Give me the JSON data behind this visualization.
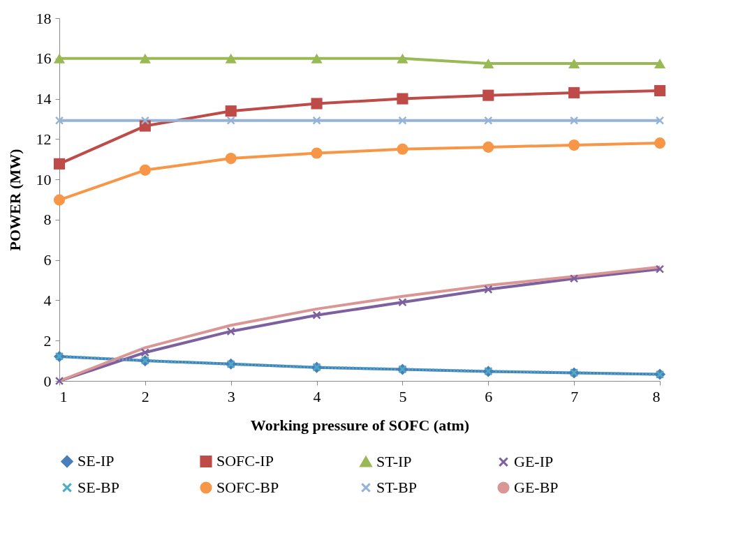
{
  "chart_data": {
    "type": "line",
    "xlabel": "Working pressure of SOFC (atm)",
    "ylabel": "POWER (MW)",
    "x": [
      1,
      2,
      3,
      4,
      5,
      6,
      7,
      8
    ],
    "xlim": [
      1,
      8
    ],
    "xticks": [
      1,
      2,
      3,
      4,
      5,
      6,
      7,
      8
    ],
    "ylim": [
      0,
      18
    ],
    "yticks": [
      0,
      2,
      4,
      6,
      8,
      10,
      12,
      14,
      16,
      18
    ],
    "grid": false,
    "legend": "bottom",
    "series": [
      {
        "name": "SE-IP",
        "color": "#4a7ebb",
        "marker": "diamond",
        "line_style": "solid",
        "values": [
          1.21,
          1.0,
          0.84,
          0.67,
          0.57,
          0.47,
          0.4,
          0.33
        ]
      },
      {
        "name": "SOFC-IP",
        "color": "#be4b48",
        "marker": "square",
        "line_style": "solid",
        "values": [
          10.77,
          12.65,
          13.39,
          13.76,
          14.0,
          14.17,
          14.3,
          14.4
        ]
      },
      {
        "name": "ST-IP",
        "color": "#98b954",
        "marker": "triangle",
        "line_style": "solid",
        "values": [
          16.0,
          16.0,
          16.0,
          16.0,
          16.0,
          15.75,
          15.75,
          15.75
        ]
      },
      {
        "name": "GE-IP",
        "color": "#7d60a0",
        "marker": "cross",
        "line_style": "solid",
        "values": [
          0,
          1.41,
          2.46,
          3.26,
          3.9,
          4.54,
          5.08,
          5.55
        ]
      },
      {
        "name": "SE-BP",
        "color": "#4bacc6",
        "marker": "cross",
        "line_style": "dotted",
        "values": [
          1.22,
          1.01,
          0.83,
          0.68,
          0.58,
          0.48,
          0.41,
          0.32
        ]
      },
      {
        "name": "SOFC-BP",
        "color": "#f79646",
        "marker": "circle",
        "line_style": "solid",
        "values": [
          8.98,
          10.46,
          11.04,
          11.3,
          11.5,
          11.6,
          11.7,
          11.8
        ]
      },
      {
        "name": "ST-BP",
        "color": "#95b3d7",
        "marker": "cross",
        "line_style": "solid",
        "values": [
          12.92,
          12.92,
          12.92,
          12.92,
          12.92,
          12.92,
          12.92,
          12.92
        ]
      },
      {
        "name": "GE-BP",
        "color": "#d99694",
        "marker": "none",
        "line_style": "solid",
        "values": [
          0,
          1.65,
          2.76,
          3.57,
          4.2,
          4.74,
          5.18,
          5.65
        ]
      }
    ]
  }
}
